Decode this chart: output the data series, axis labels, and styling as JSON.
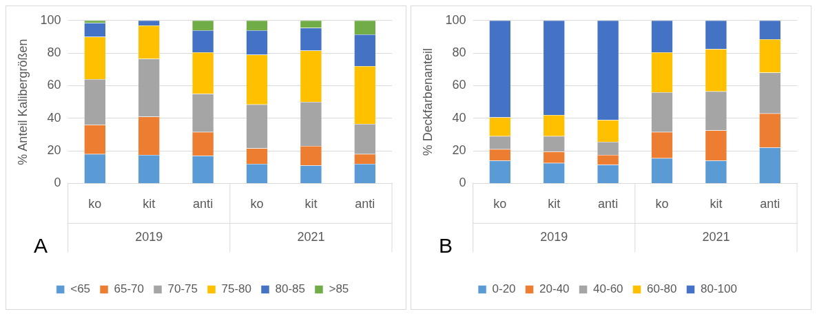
{
  "chart_data": [
    {
      "type": "bar",
      "stacked": true,
      "ylabel": "% Anteil Kalibergrößen",
      "categories": [
        "ko",
        "kit",
        "anti",
        "ko",
        "kit",
        "anti"
      ],
      "ylim": [
        0,
        100
      ],
      "yticks": [
        0,
        20,
        40,
        60,
        80,
        100
      ],
      "grid": "y",
      "legend": "bottom",
      "annotations": [
        "A",
        "2019",
        "2021"
      ],
      "series": [
        {
          "name": "<65",
          "color": "#5b9bd5",
          "values": [
            18,
            17.5,
            17,
            12,
            11,
            12
          ]
        },
        {
          "name": "65-70",
          "color": "#ed7d31",
          "values": [
            18,
            23.5,
            14.5,
            9.5,
            12,
            6
          ]
        },
        {
          "name": "70-75",
          "color": "#a5a5a5",
          "values": [
            28,
            35.5,
            23.5,
            27,
            27,
            18.5
          ]
        },
        {
          "name": "75-80",
          "color": "#ffc000",
          "values": [
            26,
            20.5,
            25.5,
            30.5,
            31.5,
            35.5
          ]
        },
        {
          "name": "80-85",
          "color": "#4472c4",
          "values": [
            8.5,
            3,
            13.5,
            15,
            14,
            19.5
          ]
        },
        {
          "name": ">85",
          "color": "#70ad47",
          "values": [
            1.5,
            0,
            6,
            6,
            4.5,
            8.5
          ]
        }
      ]
    },
    {
      "type": "bar",
      "stacked": true,
      "ylabel": "% Deckfarbenanteil",
      "categories": [
        "ko",
        "kit",
        "anti",
        "ko",
        "kit",
        "anti"
      ],
      "ylim": [
        0,
        100
      ],
      "yticks": [
        0,
        20,
        40,
        60,
        80,
        100
      ],
      "grid": "y",
      "legend": "bottom",
      "annotations": [
        "B",
        "2019",
        "2021"
      ],
      "series": [
        {
          "name": "0-20",
          "color": "#5b9bd5",
          "values": [
            14,
            12.5,
            11.5,
            15.5,
            14,
            22
          ]
        },
        {
          "name": "20-40",
          "color": "#ed7d31",
          "values": [
            7,
            7,
            6,
            16,
            18.5,
            21
          ]
        },
        {
          "name": "40-60",
          "color": "#a5a5a5",
          "values": [
            8,
            9.5,
            8,
            24.5,
            24,
            25
          ]
        },
        {
          "name": "60-80",
          "color": "#ffc000",
          "values": [
            11.5,
            13,
            13.5,
            24.5,
            26,
            20.5
          ]
        },
        {
          "name": "80-100",
          "color": "#4472c4",
          "values": [
            59.5,
            58,
            61,
            19.5,
            17.5,
            11.5
          ]
        }
      ]
    }
  ]
}
